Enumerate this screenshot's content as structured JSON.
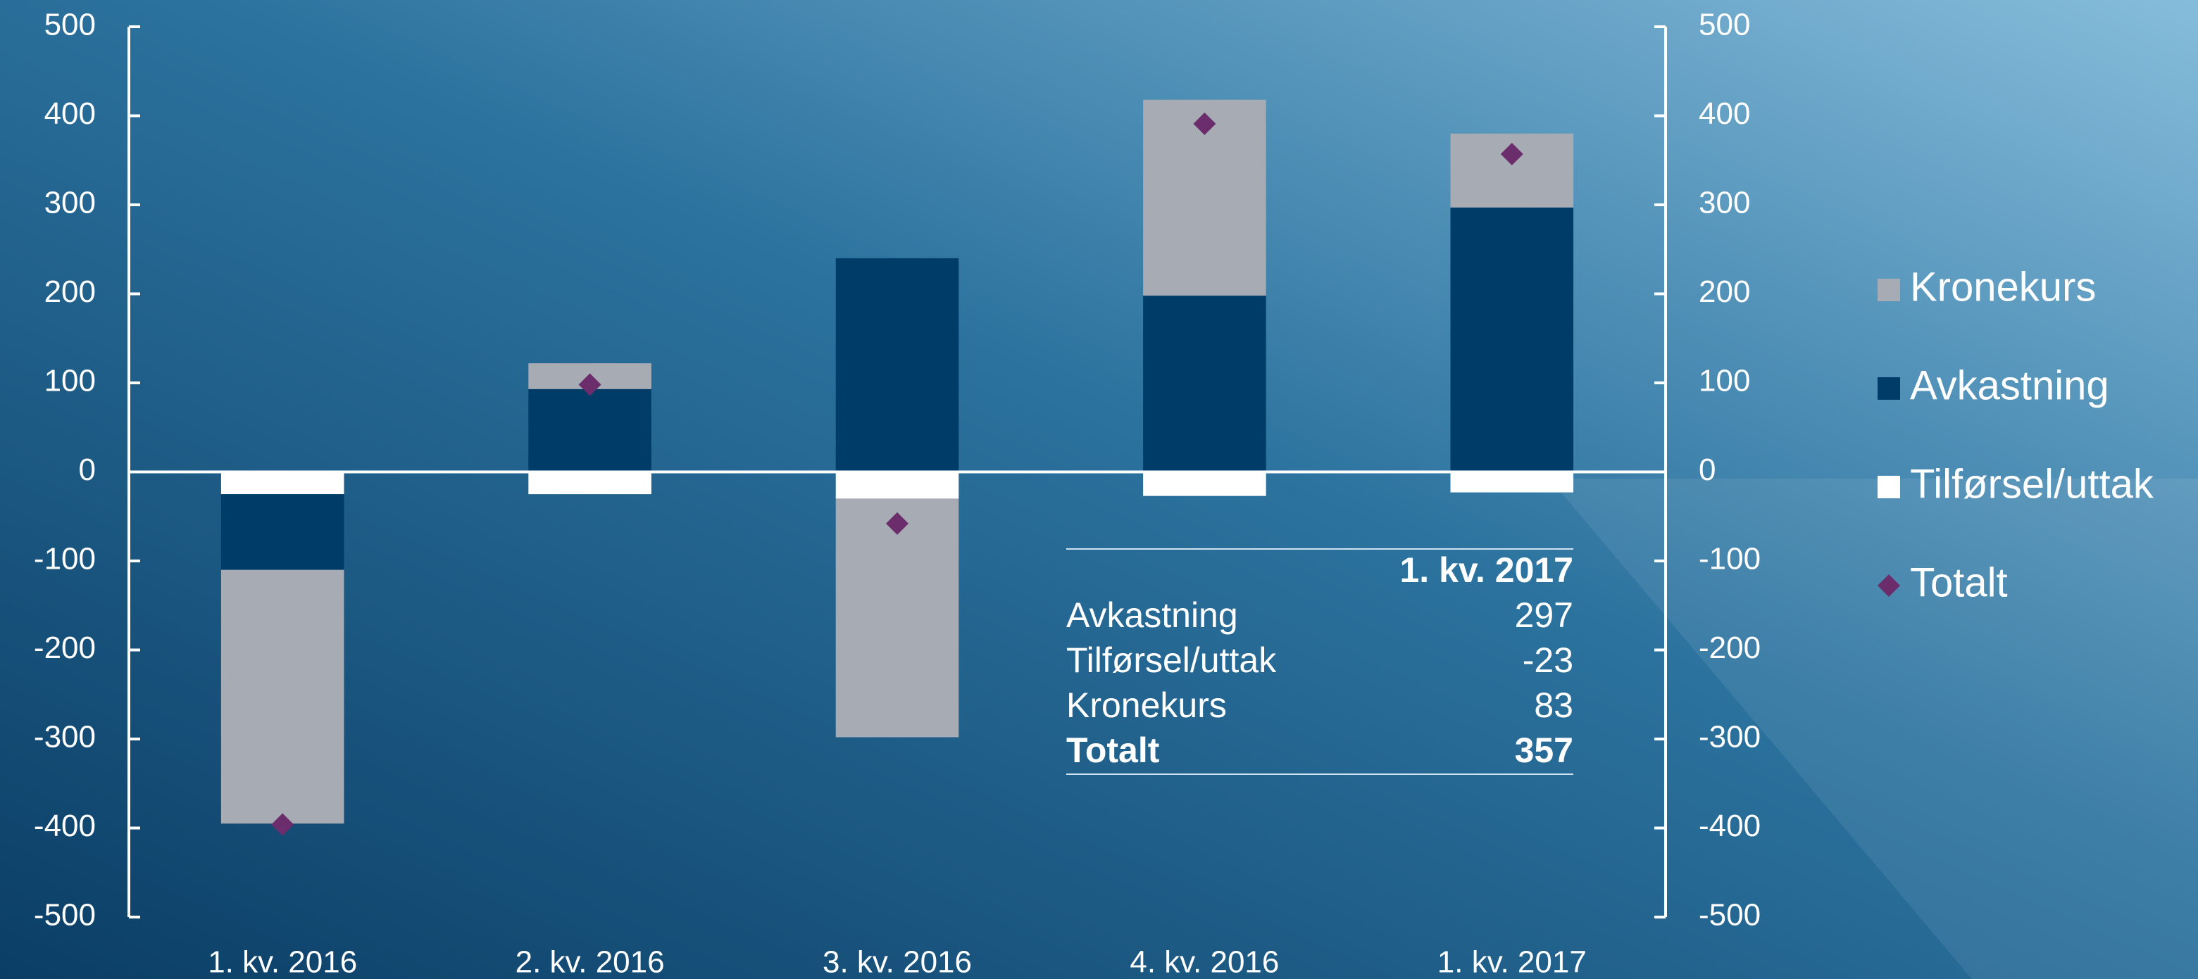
{
  "chart_data": {
    "type": "bar",
    "categories": [
      "1. kv. 2016",
      "2. kv. 2016",
      "3. kv. 2016",
      "4. kv. 2016",
      "1. kv. 2017"
    ],
    "series": [
      {
        "name": "Kronekurs",
        "color": "#a7abb3",
        "values": [
          -285,
          29,
          -268,
          220,
          83
        ]
      },
      {
        "name": "Avkastning",
        "color": "#003c68",
        "values": [
          -85,
          93,
          240,
          198,
          297
        ]
      },
      {
        "name": "Tilførsel/uttak",
        "color": "#ffffff",
        "values": [
          -25,
          -25,
          -30,
          -27,
          -23
        ]
      },
      {
        "name": "Totalt",
        "color": "#6b2d6b",
        "type": "scatter",
        "values": [
          -396,
          98,
          -58,
          391,
          357
        ]
      }
    ],
    "ylim": [
      -500,
      500
    ],
    "yticks": [
      -500,
      -400,
      -300,
      -200,
      -100,
      0,
      100,
      200,
      300,
      400,
      500
    ],
    "y2lim": [
      -500,
      500
    ],
    "y2ticks": [
      -500,
      -400,
      -300,
      -200,
      -100,
      0,
      100,
      200,
      300,
      400,
      500
    ],
    "legend": "right",
    "table": {
      "header": "1. kv. 2017",
      "rows": [
        [
          "Avkastning",
          297
        ],
        [
          "Tilførsel/uttak",
          -23
        ],
        [
          "Kronekurs",
          83
        ],
        [
          "Totalt",
          357
        ]
      ]
    }
  }
}
